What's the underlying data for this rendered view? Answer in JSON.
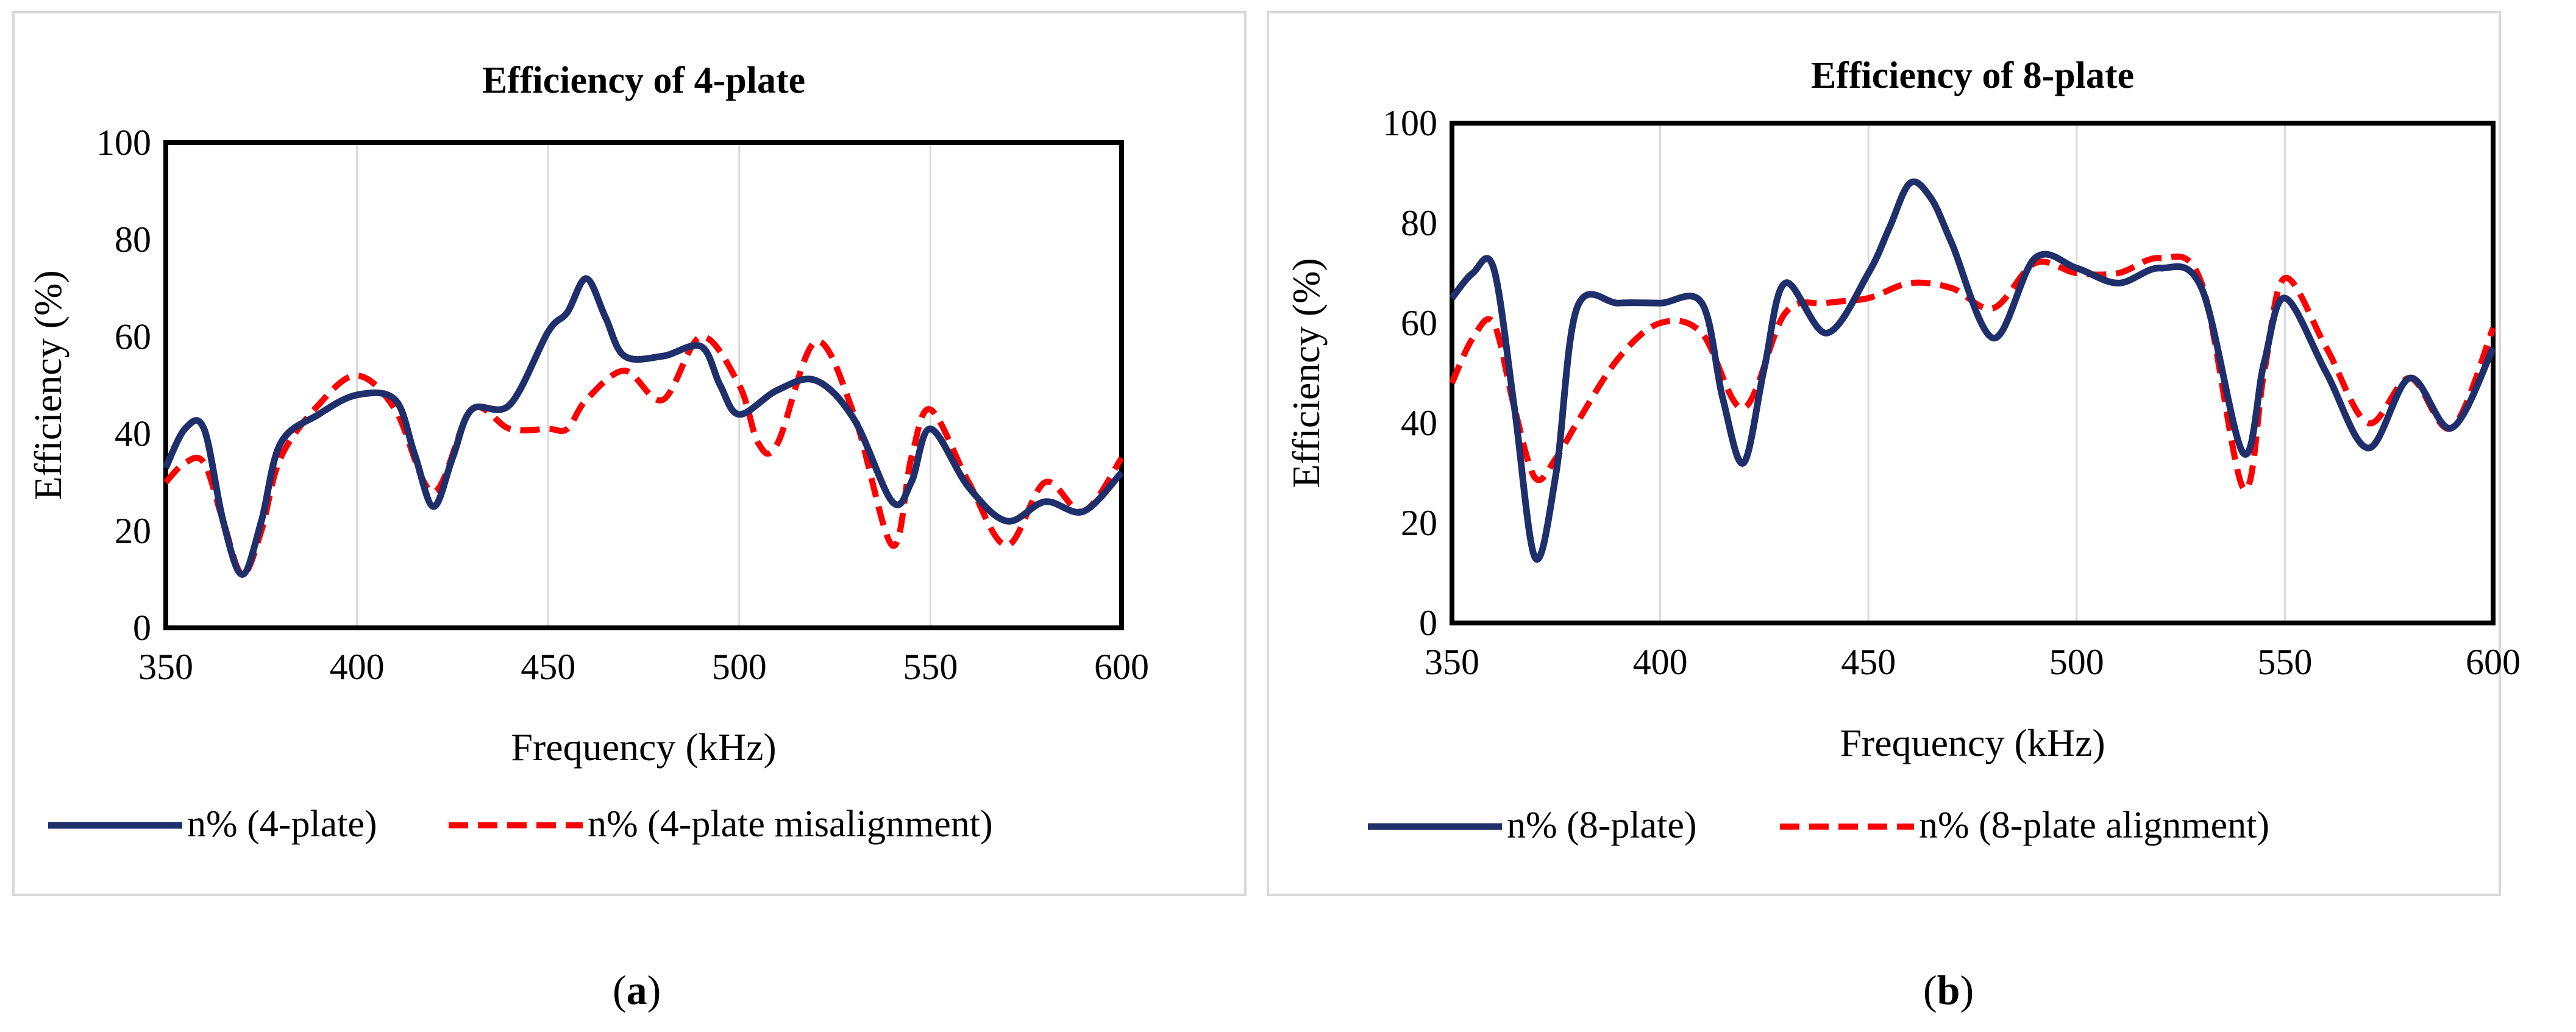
{
  "chart_data": [
    {
      "type": "line",
      "title": "Efficiency of 4-plate",
      "xlabel": "Frequency (kHz)",
      "ylabel": "Efficiency (%)",
      "xlim": [
        350,
        600
      ],
      "ylim": [
        0,
        100
      ],
      "xticks": [
        350,
        400,
        450,
        500,
        550,
        600
      ],
      "yticks": [
        0,
        20,
        40,
        60,
        80,
        100
      ],
      "grid": "vertical",
      "legend": "bottom",
      "series": [
        {
          "name": "n% (4-plate)",
          "color": "#1f2f6b",
          "style": "solid",
          "x": [
            350,
            355,
            360,
            365,
            370,
            375,
            380,
            390,
            400,
            410,
            415,
            420,
            425,
            430,
            440,
            450,
            455,
            460,
            465,
            470,
            480,
            490,
            495,
            500,
            510,
            520,
            530,
            540,
            545,
            550,
            560,
            570,
            580,
            590,
            600
          ],
          "y": [
            33,
            41,
            41,
            22,
            11,
            22,
            38,
            44,
            48,
            47,
            36,
            25,
            35,
            45,
            46,
            61,
            65,
            72,
            64,
            56,
            56,
            58,
            50,
            44,
            49,
            51,
            43,
            26,
            30,
            41,
            29,
            22,
            26,
            24,
            32
          ]
        },
        {
          "name": "n% (4-plate misalignment)",
          "color": "#ff0000",
          "style": "dashed",
          "x": [
            350,
            355,
            360,
            365,
            370,
            375,
            380,
            390,
            400,
            410,
            420,
            430,
            440,
            450,
            455,
            460,
            470,
            480,
            490,
            500,
            505,
            510,
            520,
            530,
            540,
            545,
            550,
            560,
            570,
            580,
            590,
            600
          ],
          "y": [
            30,
            34,
            34,
            22,
            11,
            20,
            35,
            46,
            52,
            45,
            28,
            45,
            41,
            41,
            41,
            47,
            53,
            47,
            60,
            50,
            38,
            38,
            59,
            44,
            17,
            35,
            45,
            30,
            17,
            30,
            24,
            35
          ]
        }
      ]
    },
    {
      "type": "line",
      "title": "Efficiency of 8-plate",
      "xlabel": "Frequency (kHz)",
      "ylabel": "Efficiency (%)",
      "xlim": [
        350,
        600
      ],
      "ylim": [
        0,
        100
      ],
      "xticks": [
        350,
        400,
        450,
        500,
        550,
        600
      ],
      "yticks": [
        0,
        20,
        40,
        60,
        80,
        100
      ],
      "grid": "vertical",
      "legend": "bottom",
      "series": [
        {
          "name": "n% (8-plate)",
          "color": "#1f2f6b",
          "style": "solid",
          "x": [
            350,
            355,
            360,
            365,
            370,
            375,
            380,
            390,
            400,
            410,
            415,
            420,
            425,
            430,
            440,
            450,
            455,
            460,
            465,
            470,
            480,
            490,
            500,
            510,
            520,
            530,
            540,
            545,
            550,
            560,
            570,
            580,
            590,
            600
          ],
          "y": [
            65,
            70,
            71,
            43,
            13,
            30,
            63,
            64,
            64,
            64,
            45,
            32,
            51,
            68,
            58,
            70,
            79,
            88,
            85,
            76,
            57,
            73,
            71,
            68,
            71,
            67,
            34,
            52,
            65,
            50,
            35,
            49,
            39,
            55
          ]
        },
        {
          "name": "n% (8-plate alignment)",
          "color": "#ff0000",
          "style": "dashed",
          "x": [
            350,
            355,
            360,
            365,
            370,
            375,
            380,
            390,
            400,
            410,
            420,
            430,
            440,
            450,
            460,
            470,
            480,
            490,
            500,
            510,
            520,
            530,
            540,
            545,
            550,
            560,
            570,
            580,
            590,
            600
          ],
          "y": [
            48,
            57,
            60,
            43,
            29,
            33,
            40,
            53,
            60,
            58,
            43,
            62,
            64,
            65,
            68,
            67,
            63,
            72,
            70,
            70,
            73,
            68,
            27,
            50,
            69,
            55,
            40,
            49,
            39,
            59
          ]
        }
      ]
    }
  ],
  "captions": [
    {
      "open": "(",
      "label": "a",
      "close": ")"
    },
    {
      "open": "(",
      "label": "b",
      "close": ")"
    }
  ]
}
